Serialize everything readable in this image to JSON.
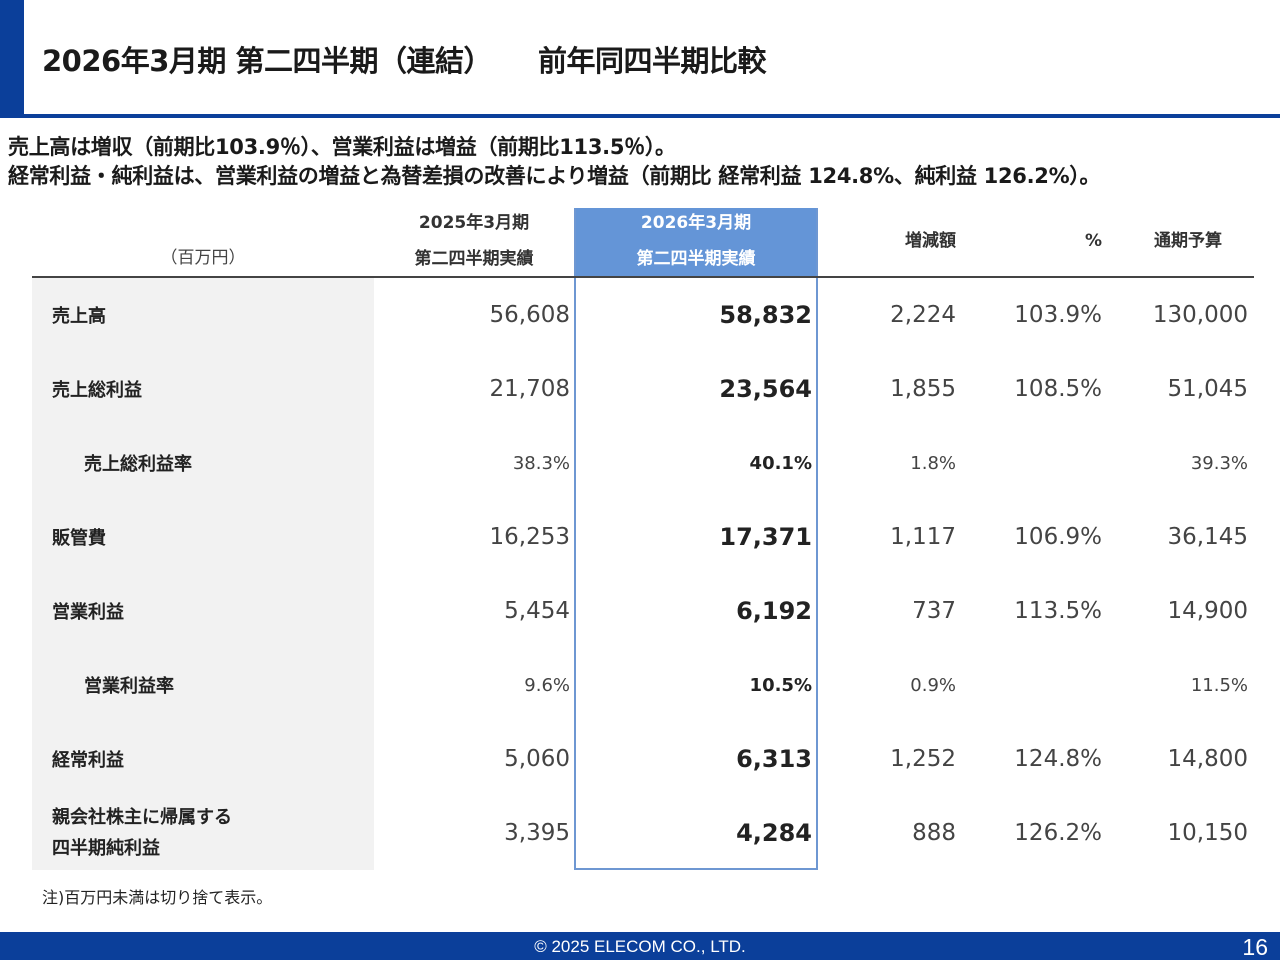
{
  "header": {
    "title": "2026年3月期 第二四半期（連結）",
    "subtitle": "前年同四半期比較",
    "accent_color": "#0b3f9a"
  },
  "summary": {
    "line1": "売上高は増収（前期比103.9％）、営業利益は増益（前期比113.5％）。",
    "line2": "経常利益・純利益は、営業利益の増益と為替差損の改善により増益（前期比 経常利益 124.8%、純利益 126.2%）。"
  },
  "table": {
    "unit": "（百万円）",
    "headers": {
      "prev_line1": "2025年3月期",
      "prev_line2": "第二四半期実績",
      "cur_line1": "2026年3月期",
      "cur_line2": "第二四半期実績",
      "diff": "増減額",
      "pct": "%",
      "budget": "通期予算"
    },
    "highlight_color": "#6495d7",
    "rows": [
      {
        "label": "売上高",
        "prev": "56,608",
        "cur": "58,832",
        "diff": "2,224",
        "pct": "103.9%",
        "budget": "130,000"
      },
      {
        "label": "売上総利益",
        "prev": "21,708",
        "cur": "23,564",
        "diff": "1,855",
        "pct": "108.5%",
        "budget": "51,045"
      },
      {
        "label": "売上総利益率",
        "prev": "38.3%",
        "cur": "40.1%",
        "diff": "1.8%",
        "pct": "",
        "budget": "39.3%"
      },
      {
        "label": "販管費",
        "prev": "16,253",
        "cur": "17,371",
        "diff": "1,117",
        "pct": "106.9%",
        "budget": "36,145"
      },
      {
        "label": "営業利益",
        "prev": "5,454",
        "cur": "6,192",
        "diff": "737",
        "pct": "113.5%",
        "budget": "14,900"
      },
      {
        "label": "営業利益率",
        "prev": "9.6%",
        "cur": "10.5%",
        "diff": "0.9%",
        "pct": "",
        "budget": "11.5%"
      },
      {
        "label": "経常利益",
        "prev": "5,060",
        "cur": "6,313",
        "diff": "1,252",
        "pct": "124.8%",
        "budget": "14,800"
      },
      {
        "label_line1": "親会社株主に帰属する",
        "label_line2": "四半期純利益",
        "prev": "3,395",
        "cur": "4,284",
        "diff": "888",
        "pct": "126.2%",
        "budget": "10,150"
      }
    ]
  },
  "footnote": "注)百万円未満は切り捨て表示。",
  "footer": {
    "copyright": "© 2025 ELECOM CO., LTD.",
    "page_number": "16"
  }
}
